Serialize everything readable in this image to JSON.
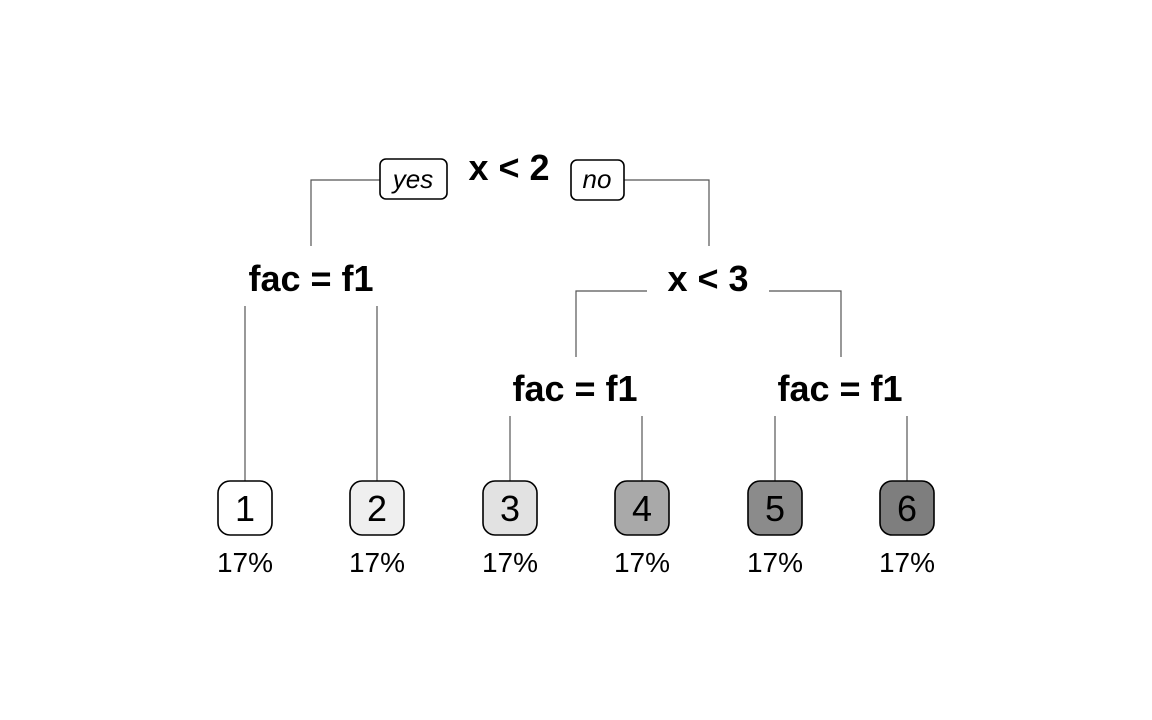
{
  "tree": {
    "root": {
      "label": "x < 2",
      "yes_label": "yes",
      "no_label": "no"
    },
    "splits": [
      {
        "label": "x < 2"
      },
      {
        "label": "fac = f1"
      },
      {
        "label": "x < 3"
      },
      {
        "label": "fac = f1"
      },
      {
        "label": "fac = f1"
      }
    ],
    "leaves": [
      {
        "label": "1",
        "percent": "17%",
        "fill": "#ffffff"
      },
      {
        "label": "2",
        "percent": "17%",
        "fill": "#efefef"
      },
      {
        "label": "3",
        "percent": "17%",
        "fill": "#e2e2e2"
      },
      {
        "label": "4",
        "percent": "17%",
        "fill": "#a9a9a9"
      },
      {
        "label": "5",
        "percent": "17%",
        "fill": "#8b8b8b"
      },
      {
        "label": "6",
        "percent": "17%",
        "fill": "#7e7e7e"
      }
    ]
  }
}
